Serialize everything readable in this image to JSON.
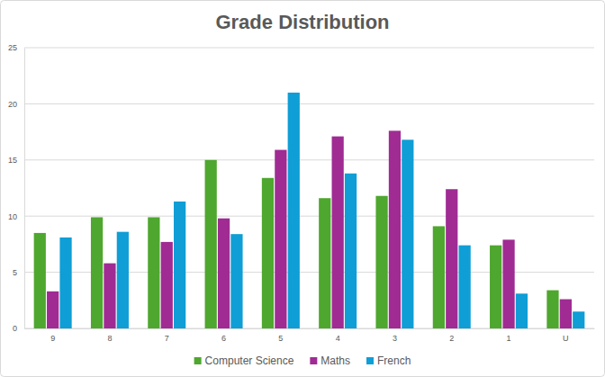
{
  "chart_data": {
    "type": "bar",
    "title": "Grade Distribution",
    "categories": [
      "9",
      "8",
      "7",
      "6",
      "5",
      "4",
      "3",
      "2",
      "1",
      "U"
    ],
    "series": [
      {
        "name": "Computer Science",
        "color": "#4ea72e",
        "values": [
          8.5,
          9.9,
          9.9,
          15,
          13.4,
          11.6,
          11.8,
          9.1,
          7.4,
          3.4
        ]
      },
      {
        "name": "Maths",
        "color": "#a02b93",
        "values": [
          3.3,
          5.8,
          7.7,
          9.8,
          15.9,
          17.1,
          17.6,
          12.4,
          7.9,
          2.6
        ]
      },
      {
        "name": "French",
        "color": "#0f9ed5",
        "values": [
          8.1,
          8.6,
          11.3,
          8.4,
          21,
          13.8,
          16.8,
          7.4,
          3.1,
          1.5
        ]
      }
    ],
    "ylim": [
      0,
      25
    ],
    "yticks": [
      0,
      5,
      10,
      15,
      20,
      25
    ],
    "grid": true,
    "legend": "bottom"
  }
}
